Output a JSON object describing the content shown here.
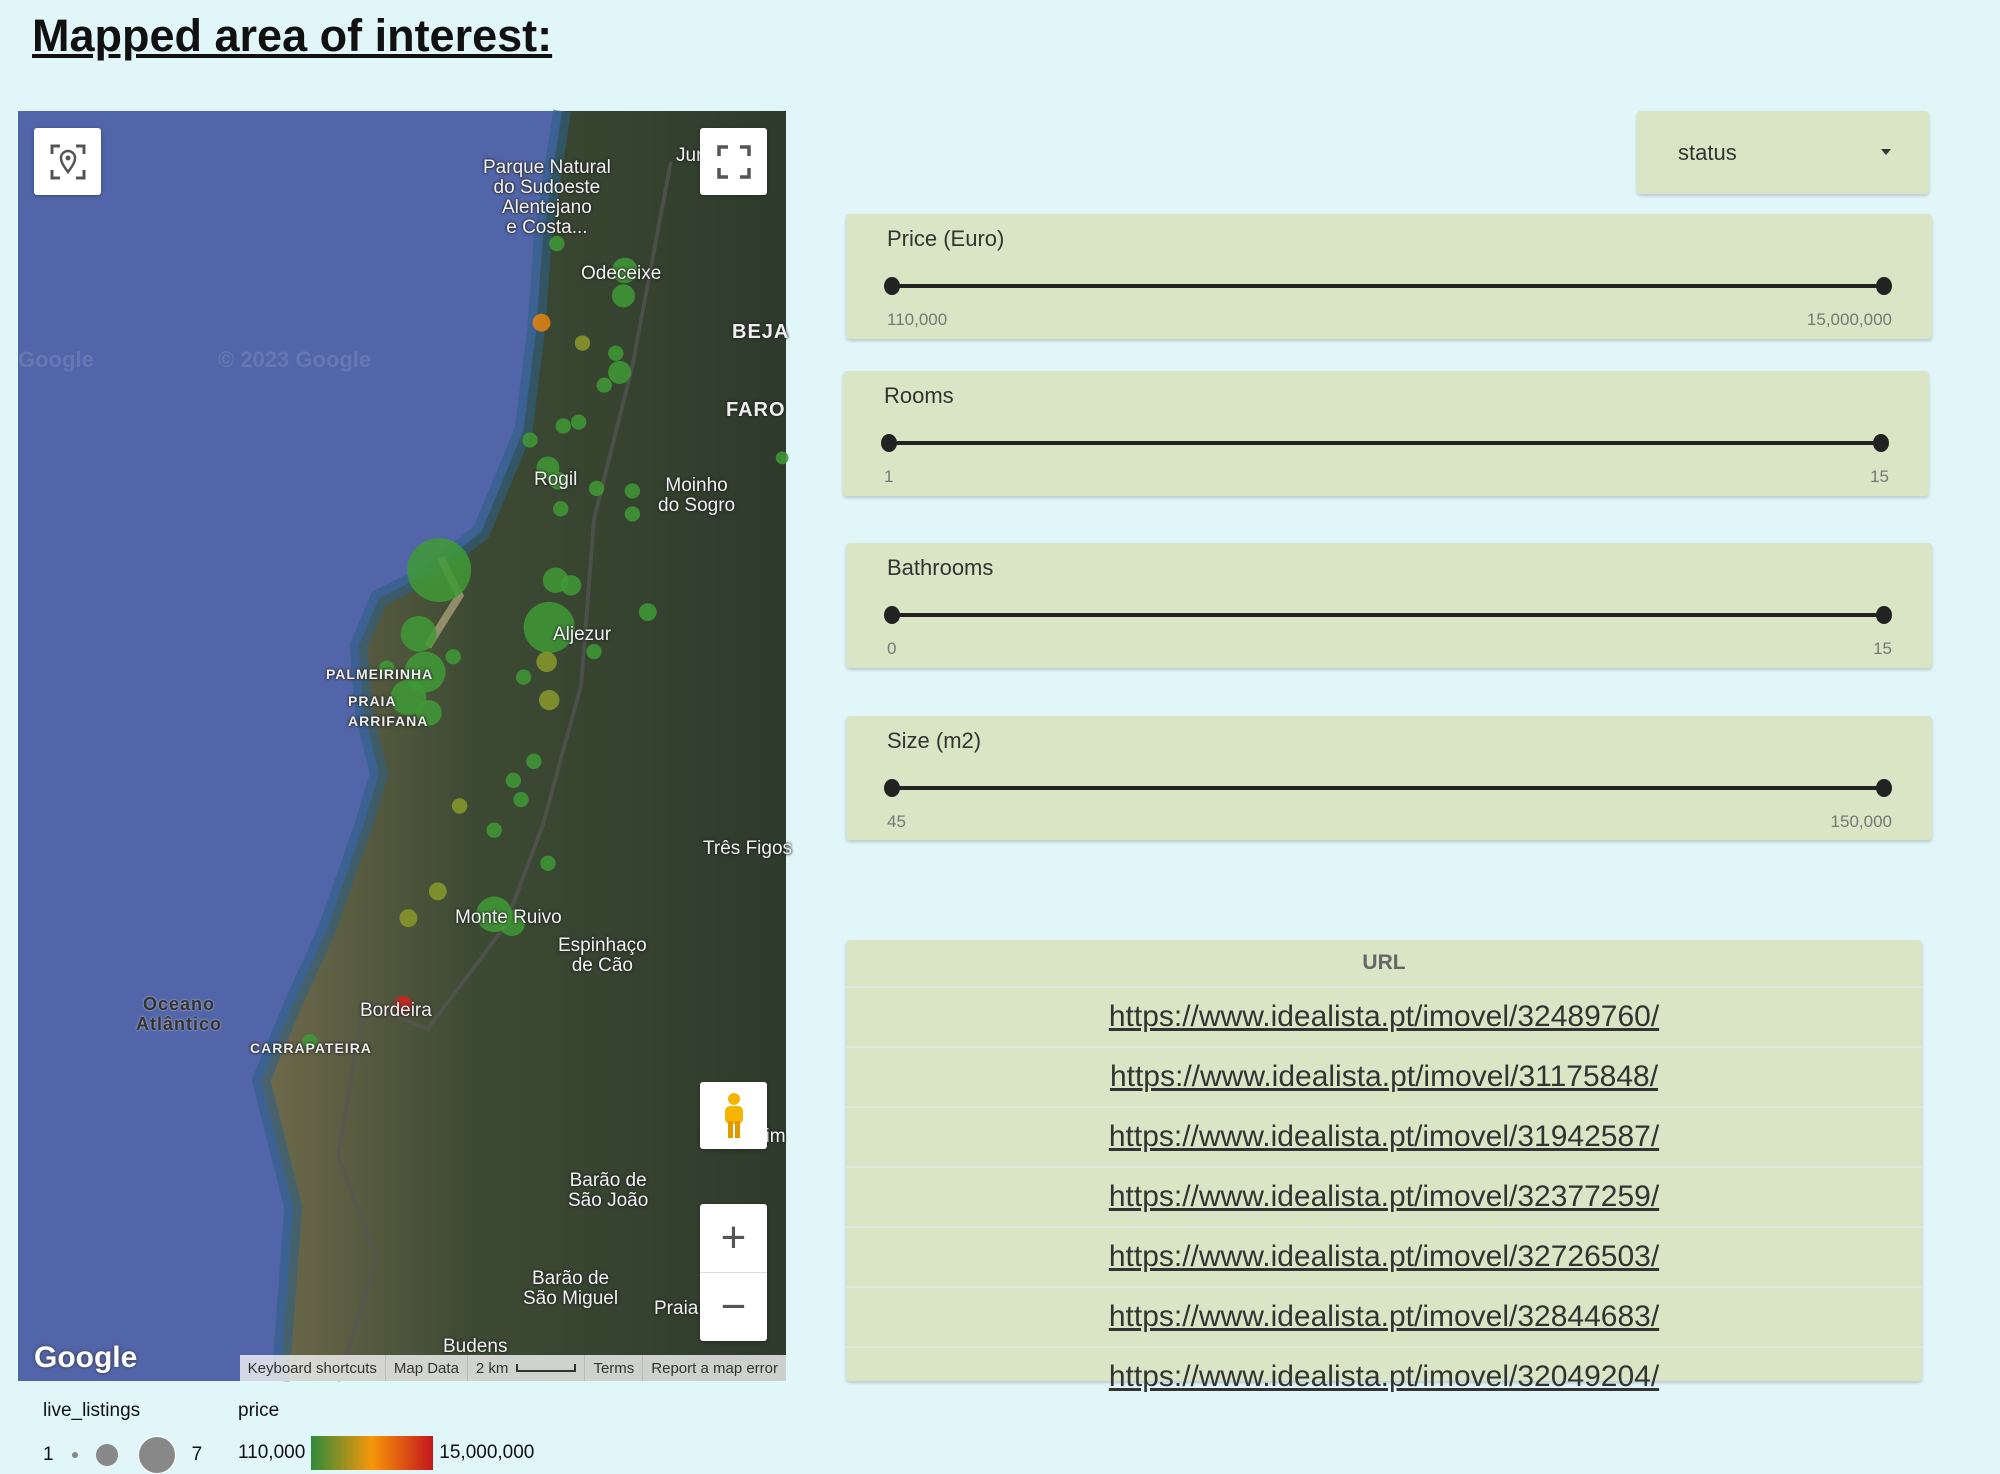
{
  "page": {
    "title": "Mapped area of interest:"
  },
  "map": {
    "labels": [
      "Parque Natural\ndo Sudoeste\nAlentejano\ne Costa...",
      "Odeceixe",
      "BEJA",
      "FARO",
      "Rogil",
      "Moinho\ndo Sogro",
      "PALMEIRINHA",
      "PRAIA\nARRIFANA",
      "Aljezur",
      "Três Figos",
      "Monte Ruivo",
      "Espinhaço\nde Cão",
      "Oceano\nAtlântico",
      "Bordeira",
      "CARRAPATEIRA",
      "Barão de\nSão João",
      "Barão de\nSão Miguel",
      "Budens",
      "Praia",
      "Bensafrim",
      "Junqueiro"
    ],
    "watermark": [
      "Google",
      "© 2023 Google"
    ],
    "logo": "Google",
    "attribution": {
      "keyboard": "Keyboard shortcuts",
      "map_data": "Map Data",
      "scale": "2 km",
      "terms": "Terms",
      "report": "Report a map error"
    },
    "controls": {
      "locate_icon": "map-pin-focus-icon",
      "fullscreen_icon": "fullscreen-icon",
      "pegman_icon": "street-view-pegman-icon",
      "zoom_in": "+",
      "zoom_out": "−"
    },
    "colors": {
      "low": "#3f9a36",
      "mid": "#e8820c",
      "high": "#d0261e"
    }
  },
  "legend": {
    "size": {
      "title": "live_listings",
      "min": "1",
      "max": "7"
    },
    "color": {
      "title": "price",
      "min": "110,000",
      "max": "15,000,000"
    }
  },
  "filters": {
    "status_dropdown": {
      "value": "status"
    },
    "sliders": [
      {
        "label": "Price (Euro)",
        "min": "110,000",
        "max": "15,000,000",
        "selected_low": "110,000",
        "selected_high": "15,000,000"
      },
      {
        "label": "Rooms",
        "min": "1",
        "max": "15",
        "selected_low": "1",
        "selected_high": "15"
      },
      {
        "label": "Bathrooms",
        "min": "0",
        "max": "15",
        "selected_low": "0",
        "selected_high": "15"
      },
      {
        "label": "Size (m2)",
        "min": "45",
        "max": "150,000",
        "selected_low": "45",
        "selected_high": "150,000"
      }
    ]
  },
  "table": {
    "header": "URL",
    "rows": [
      "https://www.idealista.pt/imovel/32489760/",
      "https://www.idealista.pt/imovel/31175848/",
      "https://www.idealista.pt/imovel/31942587/",
      "https://www.idealista.pt/imovel/32377259/",
      "https://www.idealista.pt/imovel/32726503/",
      "https://www.idealista.pt/imovel/32844683/",
      "https://www.idealista.pt/imovel/32049204/"
    ]
  }
}
